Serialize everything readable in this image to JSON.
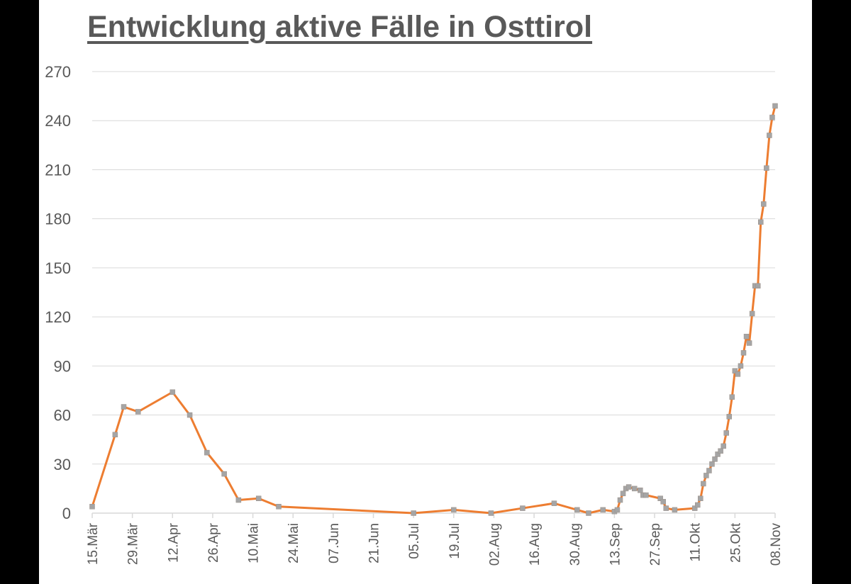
{
  "chart_data": {
    "type": "line",
    "title": "Entwicklung aktive Fälle in Osttirol",
    "xlabel": "",
    "ylabel": "",
    "ylim": [
      0,
      270
    ],
    "yticks": [
      0,
      30,
      60,
      90,
      120,
      150,
      180,
      210,
      240,
      270
    ],
    "xlim": [
      "2020-03-15",
      "2020-11-08"
    ],
    "xtick_labels": [
      "15.Mär",
      "29.Mär",
      "12.Apr",
      "26.Apr",
      "10.Mai",
      "24.Mai",
      "07.Jun",
      "21.Jun",
      "05.Jul",
      "19.Jul",
      "02.Aug",
      "16.Aug",
      "30.Aug",
      "13.Sep",
      "27.Sep",
      "11.Okt",
      "25.Okt",
      "08.Nov"
    ],
    "grid": "horizontal",
    "line_color": "#ED7D31",
    "marker_color": "#A5A5A5",
    "series": [
      {
        "x": [
          "2020-03-15",
          "2020-03-23",
          "2020-03-26",
          "2020-03-31",
          "2020-04-12",
          "2020-04-18",
          "2020-04-24",
          "2020-04-30",
          "2020-05-05",
          "2020-05-12",
          "2020-05-19",
          "2020-07-05",
          "2020-07-19",
          "2020-08-01",
          "2020-08-12",
          "2020-08-23",
          "2020-08-31",
          "2020-09-04",
          "2020-09-09",
          "2020-09-13",
          "2020-09-14",
          "2020-09-15",
          "2020-09-16",
          "2020-09-17",
          "2020-09-18",
          "2020-09-20",
          "2020-09-22",
          "2020-09-23",
          "2020-09-24",
          "2020-09-29",
          "2020-09-30",
          "2020-10-01",
          "2020-10-04",
          "2020-10-11",
          "2020-10-12",
          "2020-10-13",
          "2020-10-14",
          "2020-10-15",
          "2020-10-16",
          "2020-10-17",
          "2020-10-18",
          "2020-10-19",
          "2020-10-20",
          "2020-10-21",
          "2020-10-22",
          "2020-10-23",
          "2020-10-24",
          "2020-10-25",
          "2020-10-26",
          "2020-10-27",
          "2020-10-28",
          "2020-10-29",
          "2020-10-30",
          "2020-10-31",
          "2020-11-01",
          "2020-11-02",
          "2020-11-03",
          "2020-11-04",
          "2020-11-05",
          "2020-11-06",
          "2020-11-07",
          "2020-11-08"
        ],
        "y": [
          4,
          48,
          65,
          62,
          74,
          60,
          37,
          24,
          8,
          9,
          4,
          0,
          2,
          0,
          3,
          6,
          2,
          0,
          2,
          1,
          2,
          8,
          12,
          15,
          16,
          15,
          14,
          11,
          11,
          9,
          7,
          3,
          2,
          3,
          5,
          9,
          18,
          23,
          26,
          30,
          33,
          36,
          38,
          41,
          49,
          59,
          71,
          87,
          85,
          90,
          98,
          108,
          104,
          122,
          139,
          139,
          178,
          189,
          211,
          231,
          242,
          249
        ]
      }
    ]
  }
}
